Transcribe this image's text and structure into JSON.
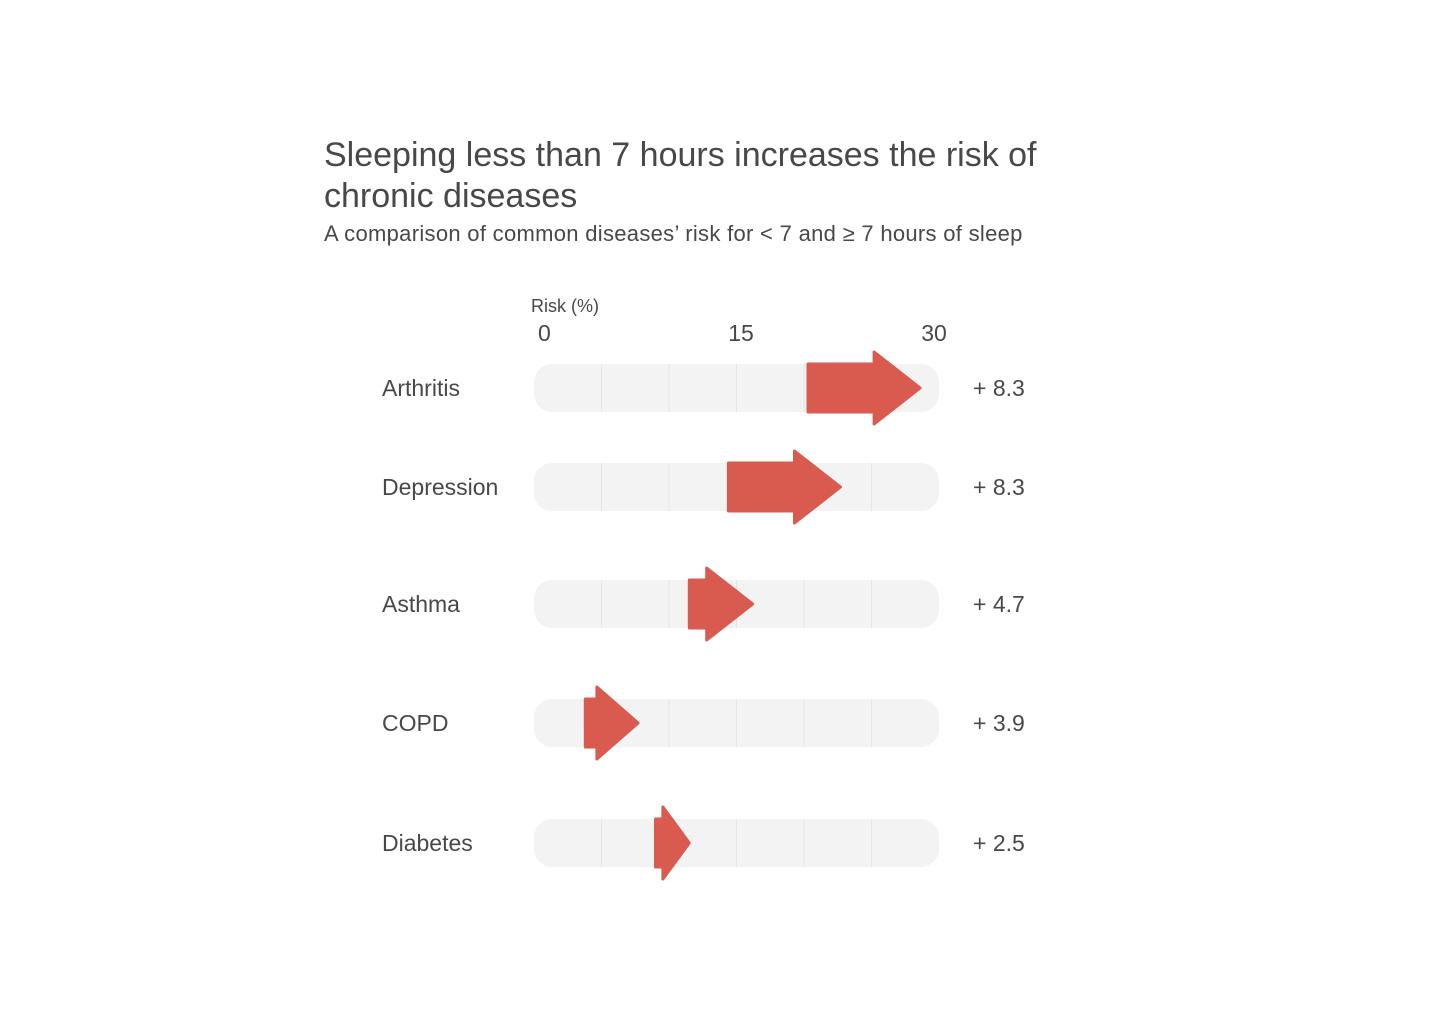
{
  "chart_data": {
    "type": "bar",
    "title": "Sleeping less than 7 hours increases the risk of chronic diseases",
    "subtitle": "A comparison of common diseases’ risk for < 7 and ≥ 7 hours of sleep",
    "xlabel": "Risk (%)",
    "xlim": [
      0,
      30
    ],
    "x_ticks": [
      "0",
      "15",
      "30"
    ],
    "grid_step": 5,
    "categories": [
      "Arthritis",
      "Depression",
      "Asthma",
      "COPD",
      "Diabetes"
    ],
    "series": [
      {
        "values": [
          20.3,
          14.4,
          11.5,
          3.8,
          9.0
        ]
      },
      {
        "values": [
          28.6,
          22.7,
          16.2,
          7.7,
          11.5
        ]
      }
    ],
    "difference_labels": [
      "+ 8.3",
      "+ 8.3",
      "+ 4.7",
      "+ 3.9",
      "+ 2.5"
    ],
    "colors": {
      "arrow": "#d95a4f",
      "track": "#f3f3f3",
      "gridline": "#e4e4e4",
      "text": "#484848"
    }
  }
}
